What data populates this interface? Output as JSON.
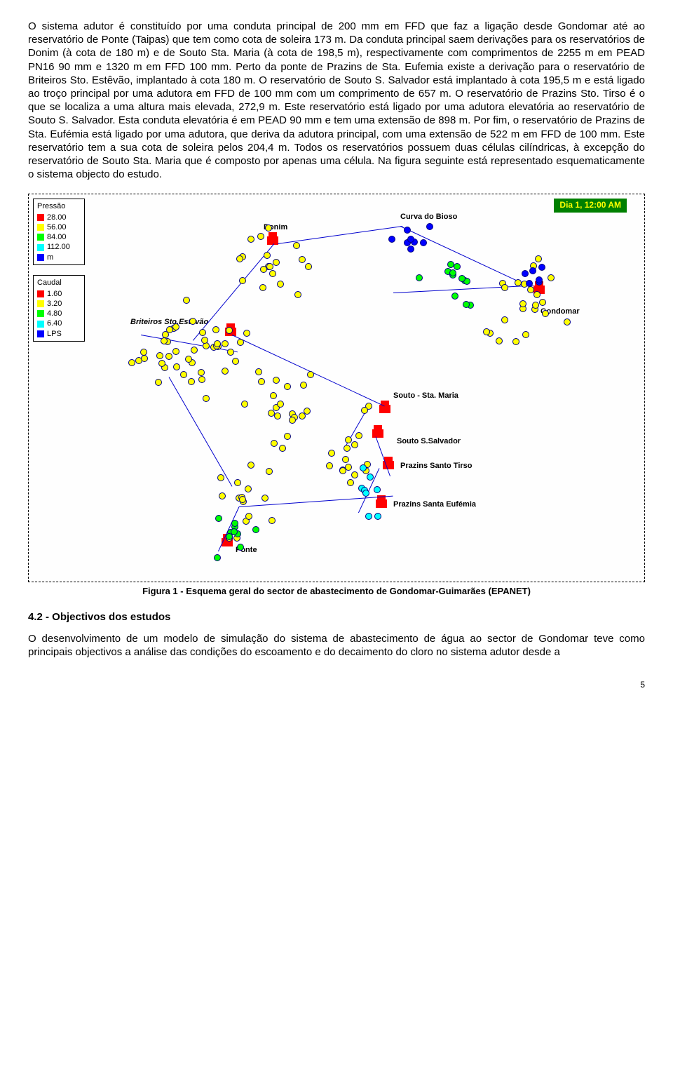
{
  "para1": "O sistema adutor é constituído por uma conduta principal de 200 mm em FFD que faz a ligação desde Gondomar até ao reservatório de Ponte (Taipas) que tem como cota de soleira 173 m. Da conduta principal saem derivações para os reservatórios de Donim (à cota de 180 m) e de Souto Sta. Maria (à cota de 198,5 m), respectivamente com comprimentos de 2255 m em PEAD PN16 90 mm e 1320 m em FFD 100 mm. Perto da ponte de Prazins de Sta. Eufemia existe a derivação para o reservatório de Briteiros Sto. Estêvão, implantado à cota 180 m. O reservatório de Souto S. Salvador está implantado à cota 195,5 m e está ligado ao troço principal por uma adutora em FFD de 100 mm com um comprimento de 657 m. O reservatório de Prazins Sto. Tirso é o que se localiza a uma altura mais elevada, 272,9 m. Este reservatório está ligado por uma adutora elevatória ao reservatório de Souto S. Salvador. Esta conduta elevatória é em PEAD 90 mm e tem uma extensão de 898 m. Por fim, o reservatório de Prazins de Sta. Eufémia está ligado por uma adutora, que deriva da adutora principal, com uma extensão de 522 m em FFD de 100 mm. Este reservatório tem a sua cota de soleira pelos 204,4 m. Todos os reservatórios possuem duas células cilíndricas, à excepção do reservatório de Souto Sta. Maria que é composto por apenas uma célula. Na figura seguinte está representado esquematicamente o sistema objecto do estudo.",
  "legend_pressao": {
    "title": "Pressão",
    "rows": [
      {
        "c": "#ff0000",
        "v": "28.00"
      },
      {
        "c": "#ffff00",
        "v": "56.00"
      },
      {
        "c": "#00ff00",
        "v": "84.00"
      },
      {
        "c": "#00ffff",
        "v": "112.00"
      },
      {
        "c": "#0000ff",
        "v": "m"
      }
    ]
  },
  "legend_caudal": {
    "title": "Caudal",
    "rows": [
      {
        "c": "#ff0000",
        "v": "1.60"
      },
      {
        "c": "#ffff00",
        "v": "3.20"
      },
      {
        "c": "#00ff00",
        "v": "4.80"
      },
      {
        "c": "#00ffff",
        "v": "6.40"
      },
      {
        "c": "#0000ff",
        "v": "LPS"
      }
    ]
  },
  "time_label": "Dia 1, 12:00 AM",
  "map_labels": {
    "donim": "Donim",
    "curva": "Curva do Bioso",
    "briteiros": "Briteiros Sto.Estevão",
    "gondomar": "Gondomar",
    "souto_maria": "Souto - Sta. Maria",
    "souto_salvador": "Souto S.Salvador",
    "prazins_tirso": "Prazins Santo Tirso",
    "prazins_eufemia": "Prazins Santa Eufémia",
    "ponte": "Ponte"
  },
  "node_colors": {
    "red": "#ff0000",
    "yellow": "#ffff00",
    "green": "#00ff00",
    "cyan": "#00ffff",
    "blue": "#0000ff"
  },
  "caption": "Figura 1 - Esquema geral do sector de abastecimento de Gondomar-Guimarães (EPANET)",
  "heading": "4.2 - Objectivos dos estudos",
  "para2": "O desenvolvimento de um modelo de simulação do sistema de abastecimento de água ao sector de Gondomar teve como principais objectivos a análise das condições do escoamento e do decaimento do cloro no sistema adutor desde a",
  "page_number": "5"
}
